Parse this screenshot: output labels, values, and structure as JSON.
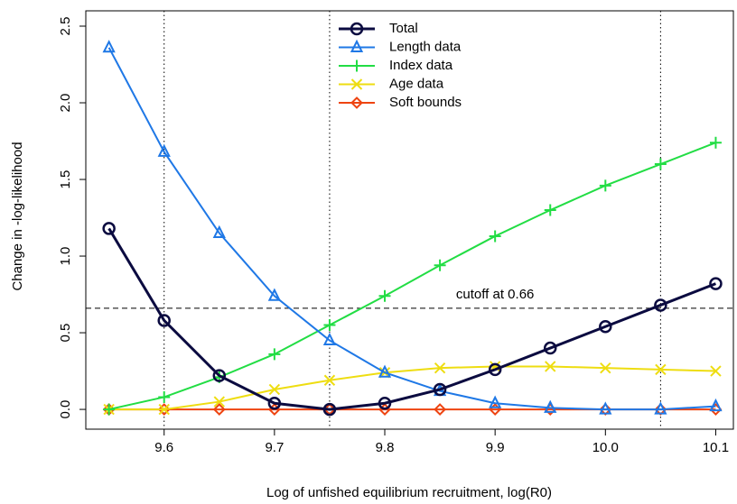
{
  "chart_data": {
    "type": "line",
    "x_label": "Log of unfished equilibrium recruitment, log(R0)",
    "y_label": "Change in -log-likelihood",
    "x": [
      9.55,
      9.6,
      9.65,
      9.7,
      9.75,
      9.8,
      9.85,
      9.9,
      9.95,
      10.0,
      10.05,
      10.1
    ],
    "series": [
      {
        "name": "Total",
        "color": "#0b0b40",
        "marker": "circle",
        "values": [
          1.18,
          0.58,
          0.22,
          0.04,
          0.0,
          0.04,
          0.13,
          0.26,
          0.4,
          0.54,
          0.68,
          0.82
        ]
      },
      {
        "name": "Length data",
        "color": "#1f78e6",
        "marker": "triangle",
        "values": [
          2.36,
          1.68,
          1.15,
          0.74,
          0.45,
          0.24,
          0.12,
          0.04,
          0.01,
          0.0,
          0.0,
          0.02
        ]
      },
      {
        "name": "Index data",
        "color": "#22dd44",
        "marker": "plus",
        "values": [
          0.0,
          0.08,
          0.21,
          0.36,
          0.55,
          0.74,
          0.94,
          1.13,
          1.3,
          1.46,
          1.6,
          1.74
        ]
      },
      {
        "name": "Age data",
        "color": "#eedd11",
        "marker": "cross",
        "values": [
          0.0,
          0.0,
          0.05,
          0.13,
          0.19,
          0.24,
          0.27,
          0.28,
          0.28,
          0.27,
          0.26,
          0.25
        ]
      },
      {
        "name": "Soft bounds",
        "color": "#ee4411",
        "marker": "diamond",
        "values": [
          0,
          0,
          0,
          0,
          0,
          0,
          0,
          0,
          0,
          0,
          0,
          0
        ]
      }
    ],
    "xlim": [
      9.529,
      10.116
    ],
    "ylim": [
      -0.129,
      2.6
    ],
    "xticks": [
      9.6,
      9.7,
      9.8,
      9.9,
      {
        "value": 10.0,
        "label": "10.0"
      },
      10.1
    ],
    "yticks": [
      {
        "value": 0,
        "label": "0.0"
      },
      0.5,
      {
        "value": 1,
        "label": "1.0"
      },
      1.5,
      {
        "value": 2,
        "label": "2.0"
      },
      2.5
    ],
    "vlines": [
      9.6,
      9.75,
      10.05
    ],
    "hline": 0.66,
    "annotation": "cutoff at 0.66",
    "legend": "top"
  }
}
